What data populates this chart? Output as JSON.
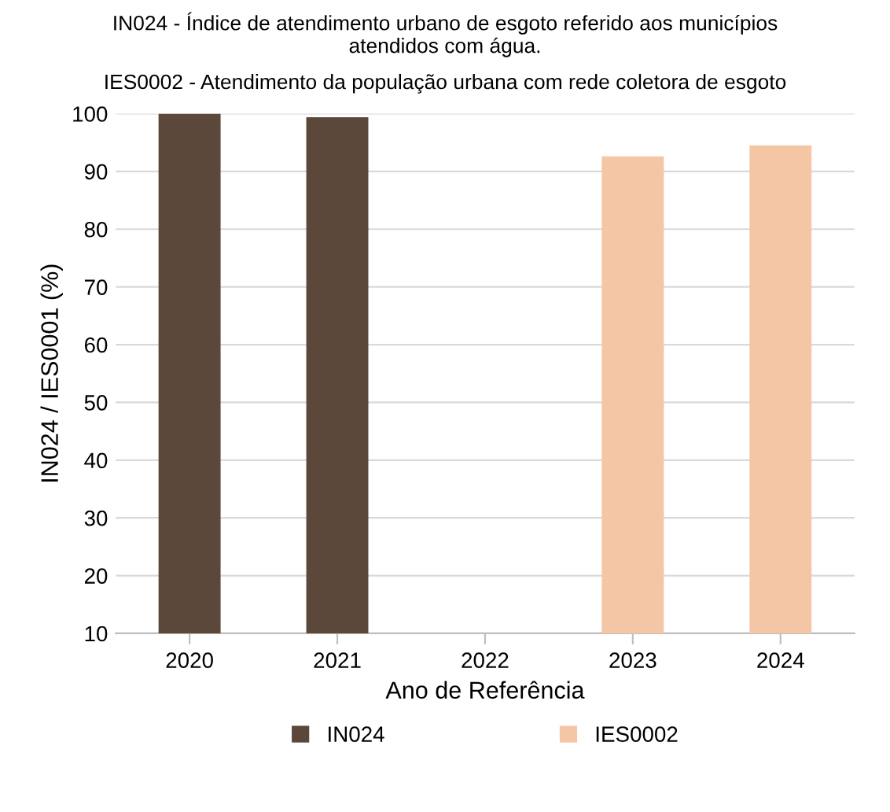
{
  "chart_data": {
    "type": "bar",
    "title": "IN024 - Índice de atendimento urbano de esgoto referido aos municípios\natendidos com água.",
    "subtitle": "IES0002 - Atendimento da população urbana com rede coletora de esgoto",
    "xlabel": "Ano de Referência",
    "ylabel": "IN024 / IES0001 (%)",
    "categories": [
      "2020",
      "2021",
      "2022",
      "2023",
      "2024"
    ],
    "series": [
      {
        "name": "IN024",
        "color": "#5c473b",
        "values": [
          100,
          99.4,
          null,
          null,
          null
        ]
      },
      {
        "name": "IES0002",
        "color": "#f4c6a6",
        "values": [
          null,
          null,
          null,
          92.6,
          94.5
        ]
      }
    ],
    "ylim": [
      10,
      100
    ],
    "yticks": [
      10,
      20,
      30,
      40,
      50,
      60,
      70,
      80,
      90,
      100
    ],
    "grid": "y",
    "legend": "bottom"
  }
}
